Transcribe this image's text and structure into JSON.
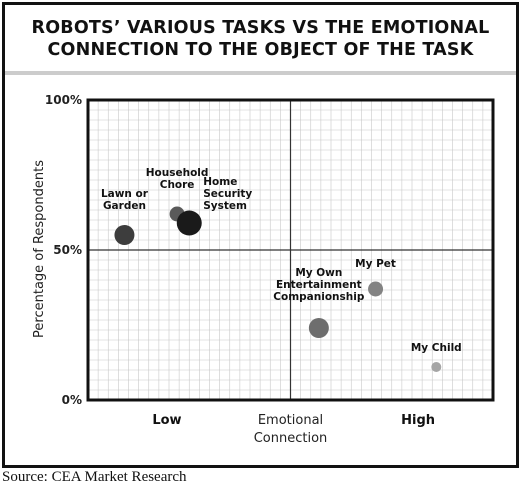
{
  "title_lines": [
    "ROBOTS’ VARIOUS TASKS VS THE EMOTIONAL",
    "CONNECTION TO THE OBJECT OF THE TASK"
  ],
  "source": "Source: CEA Market Research",
  "colors": {
    "frame": "#111111",
    "grid": "#c8c8c8",
    "axis": "#111111"
  },
  "chart_data": {
    "type": "scatter",
    "title": "ROBOTS’ VARIOUS TASKS VS THE EMOTIONAL CONNECTION TO THE OBJECT OF THE TASK",
    "xlabel": "Emotional Connection",
    "ylabel": "Percentage of Respondents",
    "x_tick_labels": [
      "Low",
      "High"
    ],
    "y_ticks": [
      {
        "value": 100,
        "label": "100%"
      },
      {
        "value": 50,
        "label": "50%"
      },
      {
        "value": 0,
        "label": "0%"
      }
    ],
    "xlim": [
      0,
      100
    ],
    "ylim": [
      0,
      100
    ],
    "grid": true,
    "points": [
      {
        "label": [
          "Lawn or",
          "Garden"
        ],
        "x": 9,
        "y": 55,
        "size": 3,
        "color": "#3d3d3d"
      },
      {
        "label": [
          "Household",
          "Chore"
        ],
        "x": 22,
        "y": 62,
        "size": 2,
        "color": "#5a5a5a"
      },
      {
        "label": [
          "Home",
          "Security",
          "System"
        ],
        "x": 25,
        "y": 59,
        "size": 4,
        "color": "#1a1a1a"
      },
      {
        "label": [
          "My Own",
          "Entertainment",
          "Companionship"
        ],
        "x": 57,
        "y": 24,
        "size": 3,
        "color": "#6e6e6e"
      },
      {
        "label": [
          "My Pet"
        ],
        "x": 71,
        "y": 37,
        "size": 2,
        "color": "#838383"
      },
      {
        "label": [
          "My Child"
        ],
        "x": 86,
        "y": 11,
        "size": 1,
        "color": "#a5a5a5"
      }
    ]
  }
}
